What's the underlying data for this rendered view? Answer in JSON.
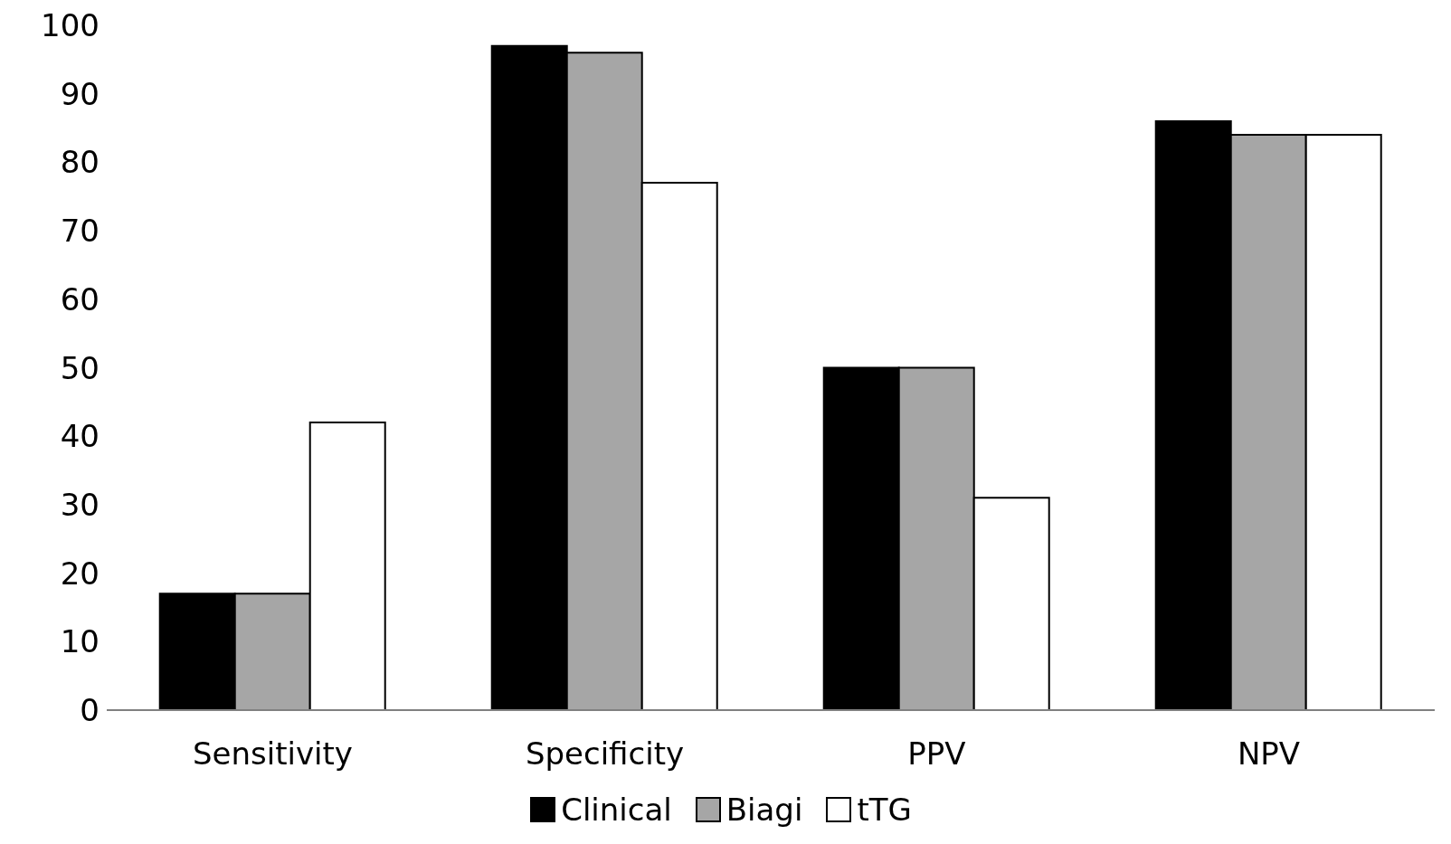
{
  "chart_data": {
    "type": "bar",
    "categories": [
      "Sensitivity",
      "Specificity",
      "PPV",
      "NPV"
    ],
    "series": [
      {
        "name": "Clinical",
        "color": "#000000",
        "values": [
          17,
          97,
          50,
          86
        ]
      },
      {
        "name": "Biagi",
        "color": "#a6a6a6",
        "values": [
          17,
          96,
          50,
          84
        ]
      },
      {
        "name": "tTG",
        "color": "#ffffff",
        "values": [
          42,
          77,
          31,
          84
        ]
      }
    ],
    "ylim": [
      0,
      100
    ],
    "yticks": [
      0,
      10,
      20,
      30,
      40,
      50,
      60,
      70,
      80,
      90,
      100
    ],
    "grid": false,
    "legend": "bottom"
  }
}
